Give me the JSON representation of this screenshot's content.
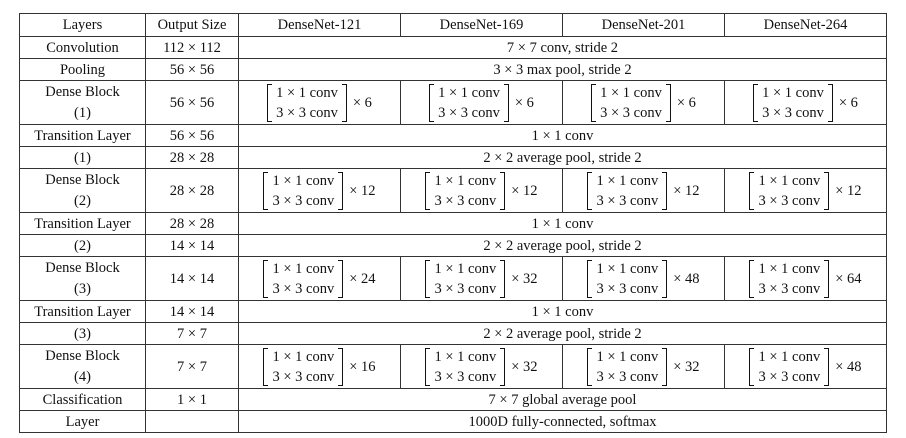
{
  "headers": [
    "Layers",
    "Output Size",
    "DenseNet-121",
    "DenseNet-169",
    "DenseNet-201",
    "DenseNet-264"
  ],
  "conv_1x1": "1 × 1 conv",
  "conv_3x3": "3 × 3 conv",
  "rows": [
    {
      "layer": "Convolution",
      "size": "112 × 112",
      "span": "7 × 7 conv, stride 2"
    },
    {
      "layer": "Pooling",
      "size": "56 × 56",
      "span": "3 × 3 max pool, stride 2"
    },
    {
      "layer": [
        "Dense Block",
        "(1)"
      ],
      "size": "56 × 56",
      "mults": [
        "× 6",
        "× 6",
        "× 6",
        "× 6"
      ]
    },
    {
      "layer": "Transition Layer",
      "size": "56 × 56",
      "span": "1 × 1 conv"
    },
    {
      "layer": "(1)",
      "size": "28 × 28",
      "span": "2 × 2 average pool, stride 2"
    },
    {
      "layer": [
        "Dense Block",
        "(2)"
      ],
      "size": "28 × 28",
      "mults": [
        "× 12",
        "× 12",
        "× 12",
        "× 12"
      ]
    },
    {
      "layer": "Transition Layer",
      "size": "28 × 28",
      "span": "1 × 1 conv"
    },
    {
      "layer": "(2)",
      "size": "14 × 14",
      "span": "2 × 2 average pool, stride 2"
    },
    {
      "layer": [
        "Dense Block",
        "(3)"
      ],
      "size": "14 × 14",
      "mults": [
        "× 24",
        "× 32",
        "× 48",
        "× 64"
      ]
    },
    {
      "layer": "Transition Layer",
      "size": "14 × 14",
      "span": "1 × 1 conv"
    },
    {
      "layer": "(3)",
      "size": "7 × 7",
      "span": "2 × 2 average pool, stride 2"
    },
    {
      "layer": [
        "Dense Block",
        "(4)"
      ],
      "size": "7 × 7",
      "mults": [
        "× 16",
        "× 32",
        "× 32",
        "× 48"
      ]
    },
    {
      "layer": "Classification",
      "size": "1 × 1",
      "span": "7 × 7 global average pool"
    },
    {
      "layer": "Layer",
      "size": "",
      "span": "1000D fully-connected, softmax"
    }
  ]
}
